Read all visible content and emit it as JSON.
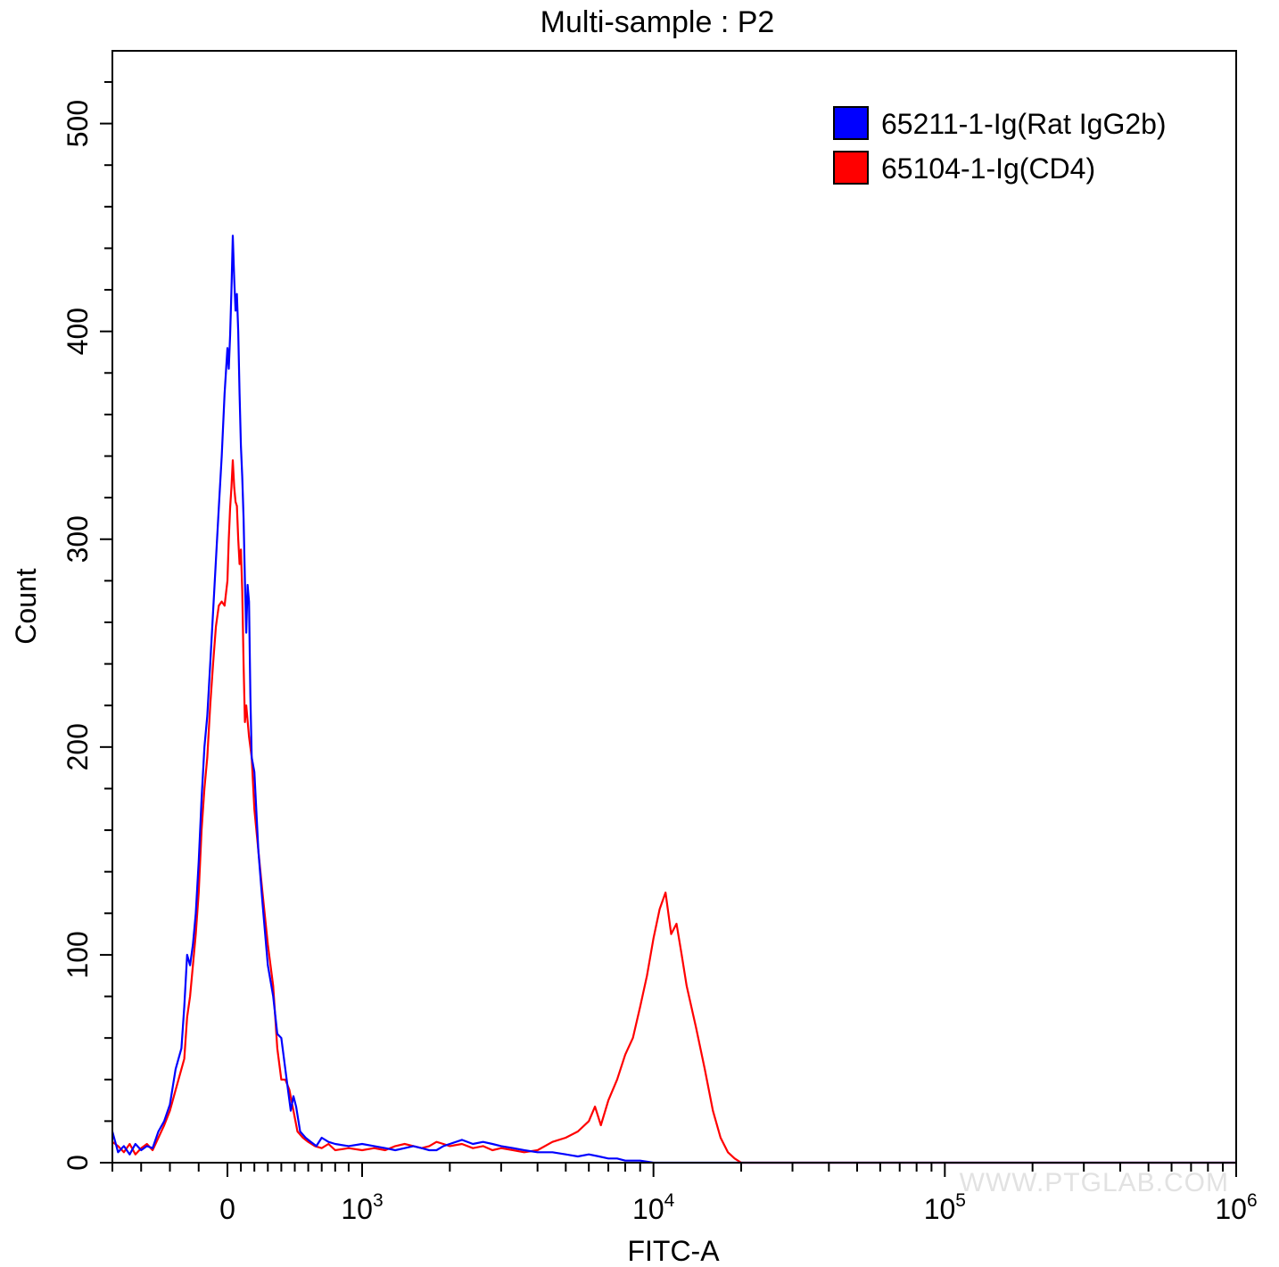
{
  "chart_data": {
    "type": "line",
    "title": "Multi-sample : P2",
    "xlabel": "FITC-A",
    "ylabel": "Count",
    "x_scale": "biexponential",
    "xlim": [
      -400,
      1000000
    ],
    "ylim": [
      0,
      535
    ],
    "grid": false,
    "legend_position": "top-right",
    "x_ticks": [
      {
        "value": 0,
        "base": "0",
        "exp": ""
      },
      {
        "value": 1000,
        "base": "10",
        "exp": "3"
      },
      {
        "value": 10000,
        "base": "10",
        "exp": "4"
      },
      {
        "value": 100000,
        "base": "10",
        "exp": "5"
      },
      {
        "value": 1000000,
        "base": "10",
        "exp": "6"
      }
    ],
    "y_ticks": [
      0,
      100,
      200,
      300,
      400,
      500
    ],
    "series": [
      {
        "name": "65211-1-Ig(Rat IgG2b)",
        "color": "#0000ff",
        "points": [
          [
            -400,
            15
          ],
          [
            -380,
            5
          ],
          [
            -360,
            8
          ],
          [
            -340,
            4
          ],
          [
            -320,
            9
          ],
          [
            -300,
            6
          ],
          [
            -280,
            8
          ],
          [
            -260,
            7
          ],
          [
            -240,
            15
          ],
          [
            -220,
            20
          ],
          [
            -200,
            28
          ],
          [
            -180,
            45
          ],
          [
            -160,
            55
          ],
          [
            -150,
            75
          ],
          [
            -140,
            100
          ],
          [
            -130,
            95
          ],
          [
            -120,
            105
          ],
          [
            -110,
            120
          ],
          [
            -100,
            145
          ],
          [
            -90,
            175
          ],
          [
            -80,
            200
          ],
          [
            -70,
            215
          ],
          [
            -60,
            240
          ],
          [
            -50,
            265
          ],
          [
            -40,
            290
          ],
          [
            -30,
            315
          ],
          [
            -20,
            340
          ],
          [
            -10,
            370
          ],
          [
            0,
            392
          ],
          [
            10,
            382
          ],
          [
            20,
            398
          ],
          [
            30,
            420
          ],
          [
            40,
            446
          ],
          [
            50,
            425
          ],
          [
            60,
            410
          ],
          [
            70,
            418
          ],
          [
            80,
            400
          ],
          [
            90,
            370
          ],
          [
            100,
            345
          ],
          [
            110,
            330
          ],
          [
            120,
            310
          ],
          [
            130,
            280
          ],
          [
            140,
            255
          ],
          [
            150,
            278
          ],
          [
            160,
            270
          ],
          [
            170,
            225
          ],
          [
            180,
            195
          ],
          [
            200,
            188
          ],
          [
            230,
            150
          ],
          [
            260,
            125
          ],
          [
            300,
            95
          ],
          [
            340,
            80
          ],
          [
            370,
            62
          ],
          [
            400,
            60
          ],
          [
            430,
            45
          ],
          [
            450,
            35
          ],
          [
            470,
            25
          ],
          [
            490,
            32
          ],
          [
            510,
            27
          ],
          [
            540,
            15
          ],
          [
            580,
            12
          ],
          [
            620,
            10
          ],
          [
            660,
            8
          ],
          [
            700,
            12
          ],
          [
            750,
            10
          ],
          [
            800,
            9
          ],
          [
            900,
            8
          ],
          [
            1000,
            9
          ],
          [
            1100,
            8
          ],
          [
            1200,
            7
          ],
          [
            1300,
            6
          ],
          [
            1400,
            7
          ],
          [
            1500,
            8
          ],
          [
            1600,
            7
          ],
          [
            1700,
            6
          ],
          [
            1800,
            6
          ],
          [
            1900,
            8
          ],
          [
            2000,
            9
          ],
          [
            2200,
            11
          ],
          [
            2400,
            9
          ],
          [
            2600,
            10
          ],
          [
            2800,
            9
          ],
          [
            3000,
            8
          ],
          [
            3300,
            7
          ],
          [
            3600,
            6
          ],
          [
            4000,
            5
          ],
          [
            4500,
            5
          ],
          [
            5000,
            4
          ],
          [
            5500,
            3
          ],
          [
            6000,
            4
          ],
          [
            6500,
            3
          ],
          [
            7000,
            2
          ],
          [
            7500,
            2
          ],
          [
            8000,
            1
          ],
          [
            9000,
            1
          ],
          [
            10000,
            0
          ],
          [
            12000,
            0
          ],
          [
            20000,
            0
          ],
          [
            100000,
            0
          ],
          [
            1000000,
            0
          ]
        ]
      },
      {
        "name": "65104-1-Ig(CD4)",
        "color": "#ff0000",
        "points": [
          [
            -400,
            10
          ],
          [
            -380,
            8
          ],
          [
            -360,
            5
          ],
          [
            -340,
            9
          ],
          [
            -320,
            4
          ],
          [
            -300,
            7
          ],
          [
            -280,
            9
          ],
          [
            -260,
            6
          ],
          [
            -240,
            12
          ],
          [
            -220,
            18
          ],
          [
            -200,
            25
          ],
          [
            -180,
            35
          ],
          [
            -160,
            45
          ],
          [
            -150,
            50
          ],
          [
            -140,
            70
          ],
          [
            -130,
            80
          ],
          [
            -120,
            95
          ],
          [
            -110,
            110
          ],
          [
            -100,
            130
          ],
          [
            -90,
            160
          ],
          [
            -80,
            180
          ],
          [
            -70,
            195
          ],
          [
            -60,
            220
          ],
          [
            -50,
            240
          ],
          [
            -40,
            258
          ],
          [
            -30,
            268
          ],
          [
            -20,
            270
          ],
          [
            -10,
            268
          ],
          [
            0,
            280
          ],
          [
            10,
            300
          ],
          [
            20,
            315
          ],
          [
            30,
            325
          ],
          [
            40,
            338
          ],
          [
            50,
            325
          ],
          [
            60,
            318
          ],
          [
            70,
            316
          ],
          [
            80,
            300
          ],
          [
            90,
            288
          ],
          [
            100,
            295
          ],
          [
            110,
            275
          ],
          [
            120,
            240
          ],
          [
            130,
            212
          ],
          [
            140,
            220
          ],
          [
            160,
            205
          ],
          [
            180,
            195
          ],
          [
            200,
            170
          ],
          [
            230,
            150
          ],
          [
            260,
            130
          ],
          [
            300,
            105
          ],
          [
            340,
            85
          ],
          [
            370,
            55
          ],
          [
            400,
            40
          ],
          [
            430,
            40
          ],
          [
            460,
            35
          ],
          [
            490,
            25
          ],
          [
            520,
            15
          ],
          [
            560,
            12
          ],
          [
            600,
            10
          ],
          [
            650,
            8
          ],
          [
            700,
            7
          ],
          [
            750,
            9
          ],
          [
            800,
            6
          ],
          [
            900,
            7
          ],
          [
            1000,
            6
          ],
          [
            1100,
            7
          ],
          [
            1200,
            6
          ],
          [
            1300,
            8
          ],
          [
            1400,
            9
          ],
          [
            1500,
            8
          ],
          [
            1600,
            7
          ],
          [
            1700,
            8
          ],
          [
            1800,
            10
          ],
          [
            1900,
            9
          ],
          [
            2000,
            8
          ],
          [
            2200,
            9
          ],
          [
            2400,
            7
          ],
          [
            2600,
            8
          ],
          [
            2800,
            6
          ],
          [
            3000,
            7
          ],
          [
            3300,
            6
          ],
          [
            3600,
            5
          ],
          [
            4000,
            6
          ],
          [
            4500,
            10
          ],
          [
            5000,
            12
          ],
          [
            5500,
            15
          ],
          [
            6000,
            20
          ],
          [
            6300,
            27
          ],
          [
            6600,
            18
          ],
          [
            7000,
            30
          ],
          [
            7500,
            40
          ],
          [
            8000,
            52
          ],
          [
            8500,
            60
          ],
          [
            9000,
            75
          ],
          [
            9500,
            90
          ],
          [
            10000,
            108
          ],
          [
            10500,
            122
          ],
          [
            11000,
            130
          ],
          [
            11500,
            110
          ],
          [
            12000,
            115
          ],
          [
            12500,
            100
          ],
          [
            13000,
            85
          ],
          [
            14000,
            65
          ],
          [
            15000,
            45
          ],
          [
            16000,
            25
          ],
          [
            17000,
            12
          ],
          [
            18000,
            5
          ],
          [
            19000,
            2
          ],
          [
            20000,
            0
          ],
          [
            100000,
            0
          ],
          [
            1000000,
            0
          ]
        ]
      }
    ]
  },
  "watermark": "WWW.PTGLAB.COM"
}
